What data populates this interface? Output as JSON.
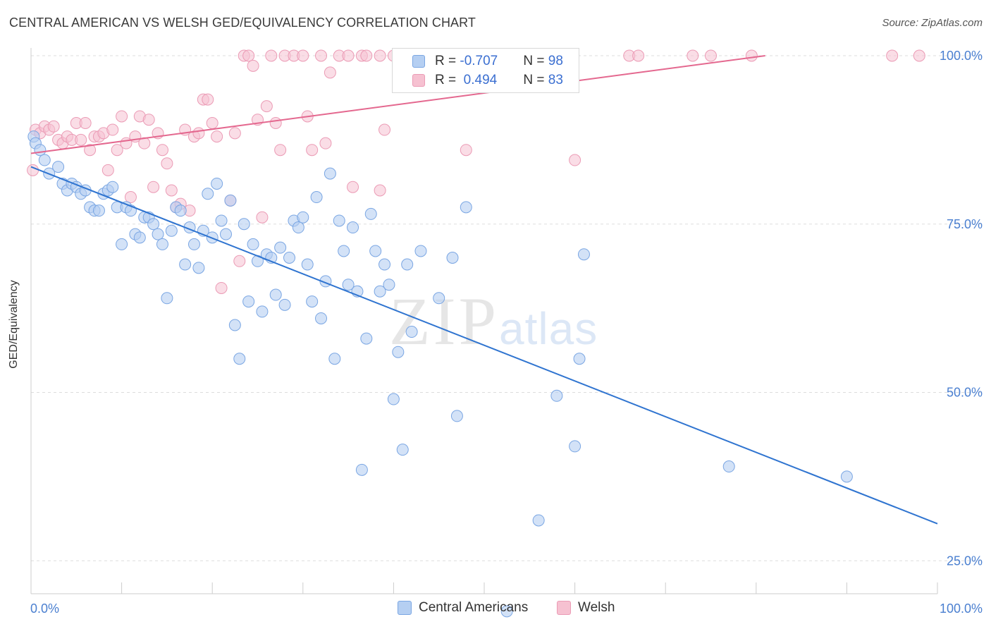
{
  "title": "CENTRAL AMERICAN VS WELSH GED/EQUIVALENCY CORRELATION CHART",
  "source": "Source: ZipAtlas.com",
  "watermark": {
    "zip": "ZIP",
    "atlas": "atlas"
  },
  "legend_top": {
    "rows": [
      {
        "r_label": "R = ",
        "r_value": "-0.707",
        "n_label": "N = ",
        "n_value": "98"
      },
      {
        "r_label": "R = ",
        "r_value": " 0.494",
        "n_label": "N = ",
        "n_value": "83"
      }
    ]
  },
  "legend_bottom": [
    {
      "label": "Central Americans"
    },
    {
      "label": "Welsh"
    }
  ],
  "colors": {
    "blue_fill": "#b5cff2",
    "blue_stroke": "#7aa6e3",
    "blue_line": "#2f74d0",
    "pink_fill": "#f6c1d1",
    "pink_stroke": "#eb9bb5",
    "pink_line": "#e4688f",
    "grid": "#dddddd",
    "tick_text": "#4a7fd0"
  },
  "chart_data": {
    "type": "scatter",
    "title": "CENTRAL AMERICAN VS WELSH GED/EQUIVALENCY CORRELATION CHART",
    "xlabel": "",
    "ylabel": "GED/Equivalency",
    "xlim": [
      0,
      100
    ],
    "ylim": [
      0,
      105
    ],
    "x_tick_labels": [
      "0.0%",
      "100.0%"
    ],
    "y_ticks": [
      25,
      50,
      75,
      100
    ],
    "y_tick_labels": [
      "25.0%",
      "50.0%",
      "75.0%",
      "100.0%"
    ],
    "grid": true,
    "legend_position": "bottom",
    "series": [
      {
        "name": "Central Americans",
        "R": -0.707,
        "N": 98,
        "trend": {
          "x": [
            0,
            100
          ],
          "y": [
            83.5,
            30.5
          ]
        },
        "points": [
          [
            0.3,
            88
          ],
          [
            0.5,
            87
          ],
          [
            1,
            86
          ],
          [
            1.5,
            84.5
          ],
          [
            2,
            82.5
          ],
          [
            3,
            83.5
          ],
          [
            3.5,
            81
          ],
          [
            4,
            80
          ],
          [
            4.5,
            81
          ],
          [
            5,
            80.5
          ],
          [
            5.5,
            79.5
          ],
          [
            6,
            80
          ],
          [
            6.5,
            77.5
          ],
          [
            7,
            77
          ],
          [
            7.5,
            77
          ],
          [
            8,
            79.5
          ],
          [
            8.5,
            80
          ],
          [
            9,
            80.5
          ],
          [
            9.5,
            77.5
          ],
          [
            10,
            72
          ],
          [
            10.5,
            77.5
          ],
          [
            11,
            77
          ],
          [
            11.5,
            73.5
          ],
          [
            12,
            73
          ],
          [
            12.5,
            76
          ],
          [
            13,
            76
          ],
          [
            13.5,
            75
          ],
          [
            14,
            73.5
          ],
          [
            14.5,
            72
          ],
          [
            15,
            64
          ],
          [
            15.5,
            74
          ],
          [
            16,
            77.5
          ],
          [
            16.5,
            77
          ],
          [
            17,
            69
          ],
          [
            17.5,
            74.5
          ],
          [
            18,
            72
          ],
          [
            18.5,
            68.5
          ],
          [
            19,
            74
          ],
          [
            19.5,
            79.5
          ],
          [
            20,
            73
          ],
          [
            20.5,
            81
          ],
          [
            21,
            75.5
          ],
          [
            21.5,
            73.5
          ],
          [
            22,
            78.5
          ],
          [
            22.5,
            60
          ],
          [
            23,
            55
          ],
          [
            23.5,
            75
          ],
          [
            24,
            63.5
          ],
          [
            24.5,
            72
          ],
          [
            25,
            69.5
          ],
          [
            25.5,
            62
          ],
          [
            26,
            70.5
          ],
          [
            26.5,
            70
          ],
          [
            27,
            64.5
          ],
          [
            27.5,
            71.5
          ],
          [
            28,
            63
          ],
          [
            28.5,
            70
          ],
          [
            29,
            75.5
          ],
          [
            29.5,
            74.5
          ],
          [
            30,
            76
          ],
          [
            30.5,
            69
          ],
          [
            31,
            63.5
          ],
          [
            31.5,
            79
          ],
          [
            32,
            61
          ],
          [
            32.5,
            66.5
          ],
          [
            33,
            82.5
          ],
          [
            33.5,
            55
          ],
          [
            34,
            75.5
          ],
          [
            34.5,
            71
          ],
          [
            35,
            66
          ],
          [
            35.5,
            74.5
          ],
          [
            36,
            65
          ],
          [
            36.5,
            38.5
          ],
          [
            37,
            58
          ],
          [
            37.5,
            76.5
          ],
          [
            38,
            71
          ],
          [
            38.5,
            65
          ],
          [
            39,
            69
          ],
          [
            39.5,
            66
          ],
          [
            40,
            49
          ],
          [
            40.5,
            56
          ],
          [
            41,
            41.5
          ],
          [
            41.5,
            69
          ],
          [
            42,
            59
          ],
          [
            43,
            71
          ],
          [
            45,
            64
          ],
          [
            46.5,
            70
          ],
          [
            47,
            46.5
          ],
          [
            48,
            77.5
          ],
          [
            52.5,
            17.5
          ],
          [
            56,
            31
          ],
          [
            58,
            49.5
          ],
          [
            60,
            42
          ],
          [
            60.5,
            55
          ],
          [
            61,
            70.5
          ],
          [
            77,
            39
          ],
          [
            90,
            37.5
          ]
        ]
      },
      {
        "name": "Welsh",
        "R": 0.494,
        "N": 83,
        "trend": {
          "x": [
            0,
            81
          ],
          "y": [
            85.5,
            100
          ]
        },
        "points": [
          [
            0.2,
            83
          ],
          [
            0.5,
            89
          ],
          [
            1,
            88.5
          ],
          [
            1.5,
            89.5
          ],
          [
            2,
            89
          ],
          [
            2.5,
            89.5
          ],
          [
            3,
            87.5
          ],
          [
            3.5,
            87
          ],
          [
            4,
            88
          ],
          [
            4.5,
            87.5
          ],
          [
            5,
            90
          ],
          [
            5.5,
            87.5
          ],
          [
            6,
            90
          ],
          [
            6.5,
            86
          ],
          [
            7,
            88
          ],
          [
            7.5,
            88
          ],
          [
            8,
            88.5
          ],
          [
            8.5,
            83
          ],
          [
            9,
            89
          ],
          [
            9.5,
            86
          ],
          [
            10,
            91
          ],
          [
            10.5,
            87
          ],
          [
            11,
            79
          ],
          [
            11.5,
            88
          ],
          [
            12,
            91
          ],
          [
            12.5,
            87
          ],
          [
            13,
            90.5
          ],
          [
            13.5,
            80.5
          ],
          [
            14,
            88.5
          ],
          [
            14.5,
            86
          ],
          [
            15,
            84
          ],
          [
            15.5,
            80
          ],
          [
            16,
            77.5
          ],
          [
            16.5,
            78
          ],
          [
            17,
            89
          ],
          [
            17.5,
            77
          ],
          [
            18,
            88
          ],
          [
            18.5,
            88.5
          ],
          [
            19,
            93.5
          ],
          [
            19.5,
            93.5
          ],
          [
            20,
            90
          ],
          [
            20.5,
            88
          ],
          [
            21,
            65.5
          ],
          [
            22,
            78.5
          ],
          [
            22.5,
            88.5
          ],
          [
            23,
            69.5
          ],
          [
            23.5,
            100
          ],
          [
            24,
            100
          ],
          [
            24.5,
            98.5
          ],
          [
            25,
            90.5
          ],
          [
            25.5,
            76
          ],
          [
            26,
            92.5
          ],
          [
            26.5,
            100
          ],
          [
            27,
            90
          ],
          [
            27.5,
            86
          ],
          [
            28,
            100
          ],
          [
            29,
            100
          ],
          [
            30,
            100
          ],
          [
            30.5,
            91
          ],
          [
            31,
            86
          ],
          [
            32,
            100
          ],
          [
            32.5,
            87
          ],
          [
            33,
            97.5
          ],
          [
            34,
            100
          ],
          [
            35,
            100
          ],
          [
            35.5,
            80.5
          ],
          [
            36.5,
            100
          ],
          [
            37,
            100
          ],
          [
            38.5,
            100
          ],
          [
            38.5,
            80
          ],
          [
            39,
            89
          ],
          [
            40,
            100
          ],
          [
            41,
            100
          ],
          [
            42,
            100
          ],
          [
            43,
            100
          ],
          [
            48,
            86
          ],
          [
            52,
            100
          ],
          [
            55,
            100
          ],
          [
            60,
            84.5
          ],
          [
            66,
            100
          ],
          [
            67,
            100
          ],
          [
            73,
            100
          ],
          [
            75,
            100
          ],
          [
            79.5,
            100
          ],
          [
            95,
            100
          ],
          [
            98,
            100
          ]
        ]
      }
    ]
  }
}
